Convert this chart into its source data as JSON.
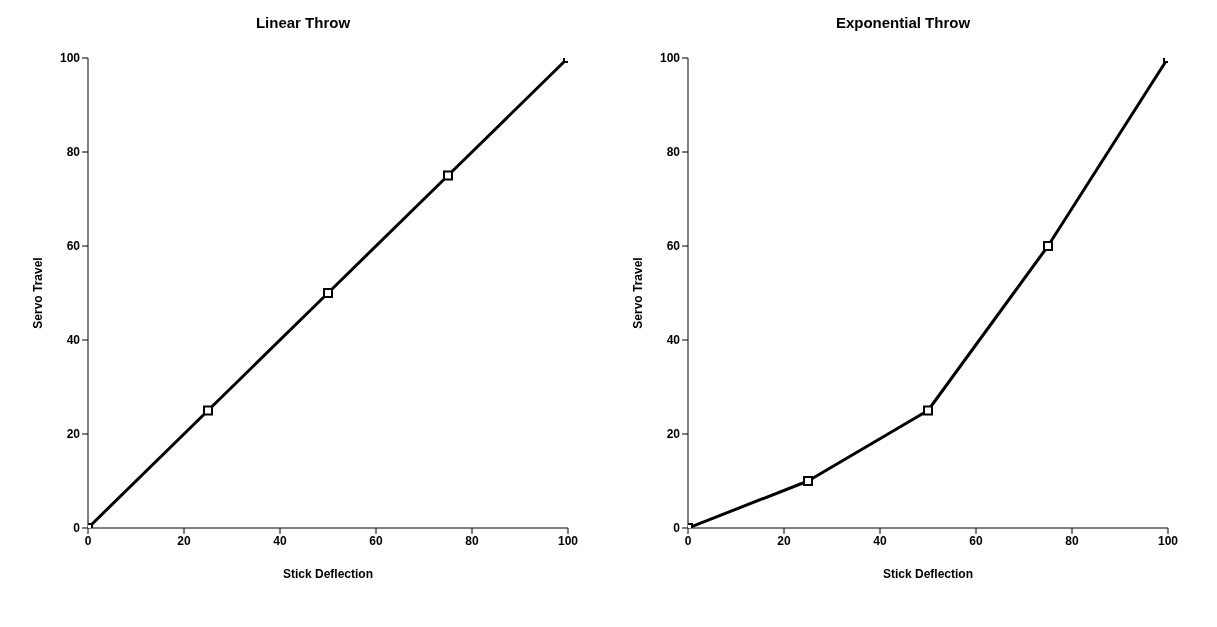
{
  "chart_data": [
    {
      "type": "line",
      "title": "Linear Throw",
      "xlabel": "Stick Deflection",
      "ylabel": "Servo Travel",
      "x": [
        0,
        25,
        50,
        75,
        100
      ],
      "series": [
        {
          "color": "#000000",
          "values": [
            0,
            25,
            50,
            75,
            100
          ]
        }
      ],
      "xlim": [
        0,
        100
      ],
      "ylim": [
        0,
        100
      ],
      "xticks": [
        0,
        20,
        40,
        60,
        80,
        100
      ],
      "yticks": [
        0,
        20,
        40,
        60,
        80,
        100
      ],
      "grid": false,
      "legend": false,
      "marker": "square",
      "line_style": "solid"
    },
    {
      "type": "line",
      "title": "Exponential Throw",
      "xlabel": "Stick Deflection",
      "ylabel": "Servo Travel",
      "x": [
        0,
        25,
        50,
        75,
        100
      ],
      "series": [
        {
          "color": "#000000",
          "values": [
            0,
            10,
            25,
            60,
            100
          ]
        }
      ],
      "xlim": [
        0,
        100
      ],
      "ylim": [
        0,
        100
      ],
      "xticks": [
        0,
        20,
        40,
        60,
        80,
        100
      ],
      "yticks": [
        0,
        20,
        40,
        60,
        80,
        100
      ],
      "grid": false,
      "legend": false,
      "marker": "square",
      "line_style": "solid"
    }
  ]
}
